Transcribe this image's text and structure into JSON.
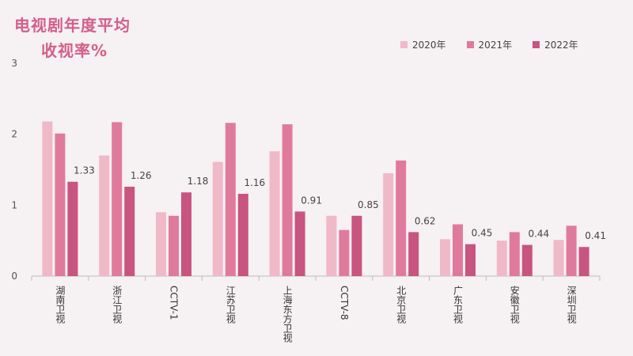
{
  "chart_data": {
    "type": "bar",
    "title_lines": [
      "电视剧年度平均",
      "收视率%"
    ],
    "categories": [
      "湖南卫视",
      "浙江卫视",
      "CCTV-1",
      "江苏卫视",
      "上海东方卫视",
      "CCTV-8",
      "北京卫视",
      "广东卫视",
      "安徽卫视",
      "深圳卫视"
    ],
    "series": [
      {
        "name": "2020年",
        "color": "#f0b9c8",
        "values": [
          2.18,
          1.7,
          0.9,
          1.61,
          1.76,
          0.85,
          1.45,
          0.52,
          0.5,
          0.51
        ]
      },
      {
        "name": "2021年",
        "color": "#e07a9c",
        "values": [
          2.01,
          2.17,
          0.85,
          2.16,
          2.14,
          0.65,
          1.63,
          0.73,
          0.62,
          0.71
        ]
      },
      {
        "name": "2022年",
        "color": "#c85480",
        "values": [
          1.33,
          1.26,
          1.18,
          1.16,
          0.91,
          0.85,
          0.62,
          0.45,
          0.44,
          0.41
        ]
      }
    ],
    "data_labels_series": "2022年",
    "data_labels": [
      "1.33",
      "1.26",
      "1.18",
      "1.16",
      "0.91",
      "0.85",
      "0.62",
      "0.45",
      "0.44",
      "0.41"
    ],
    "ylim": [
      0,
      3
    ],
    "yticks": [
      0,
      1,
      2,
      3
    ],
    "ytick_labels": [
      "0",
      "1",
      "2",
      "3"
    ],
    "legend_position": "top-right",
    "grid": false
  }
}
